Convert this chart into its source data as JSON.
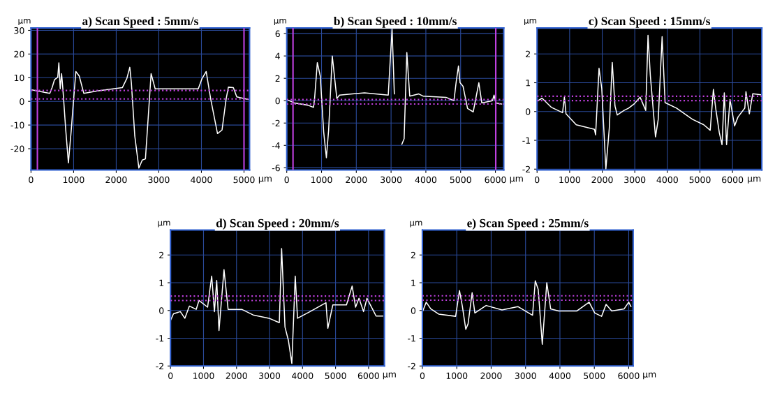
{
  "chart_data": [
    {
      "type": "line",
      "title": "a) Scan Speed : 5mm/s",
      "ylabel": "µm",
      "xlabel": "µm",
      "xlim": [
        0,
        5130
      ],
      "ylim": [
        -29,
        31
      ],
      "grid": true,
      "xticks": [
        0,
        1000,
        2000,
        3000,
        4000,
        5000
      ],
      "yticks": [
        30,
        20,
        10,
        0,
        -10,
        -20
      ],
      "ref_lines": [
        {
          "axis": "y",
          "value": 4.6,
          "color": "#c040e0",
          "line_style": "dotted"
        },
        {
          "axis": "y",
          "value": 1.0,
          "color": "#c040e0",
          "line_style": "dotted"
        },
        {
          "axis": "x",
          "value": 150,
          "color": "#c040e0",
          "line_style": "solid"
        },
        {
          "axis": "x",
          "value": 5000,
          "color": "#c040e0",
          "line_style": "solid"
        }
      ],
      "series": [
        {
          "color": "#ffffff",
          "x": [
            0,
            441,
            495,
            553,
            628,
            654,
            686,
            718,
            750,
            814,
            878,
            947,
            984,
            1053,
            1133,
            1239,
            1559,
            2144,
            2250,
            2319,
            2356,
            2436,
            2532,
            2612,
            2686,
            2755,
            2819,
            2915,
            3926,
            4016,
            4112,
            4218,
            4378,
            4484,
            4580,
            4633,
            4750,
            4830,
            5096
          ],
          "values": [
            4.9,
            3.4,
            5.8,
            9.2,
            10.2,
            16.3,
            5.3,
            11.7,
            4.9,
            -11.7,
            -26,
            -11.7,
            -2.9,
            12.6,
            10.7,
            3.4,
            4.4,
            5.8,
            9.7,
            14.4,
            7.8,
            -14.6,
            -28.2,
            -24.8,
            -24.3,
            -5.8,
            11.7,
            5.3,
            5.3,
            9.7,
            12.6,
            1.0,
            -13.6,
            -12.1,
            1.0,
            6.0,
            5.8,
            1.9,
            0.8
          ]
        }
      ]
    },
    {
      "type": "line",
      "title": "b) Scan Speed : 10mm/s",
      "ylabel": "µm",
      "xlabel": "µm",
      "xlim": [
        0,
        6240
      ],
      "ylim": [
        -6.2,
        6.5
      ],
      "grid": true,
      "xticks": [
        0,
        1000,
        2000,
        3000,
        4000,
        5000,
        6000
      ],
      "yticks": [
        6,
        4,
        2,
        0,
        -2,
        -4,
        -6
      ],
      "ref_lines": [
        {
          "axis": "y",
          "value": 0.1,
          "color": "#c040e0",
          "line_style": "dotted"
        },
        {
          "axis": "y",
          "value": -0.3,
          "color": "#c040e0",
          "line_style": "dotted"
        },
        {
          "axis": "x",
          "value": 180,
          "color": "#c040e0",
          "line_style": "solid"
        },
        {
          "axis": "x",
          "value": 6010,
          "color": "#c040e0",
          "line_style": "solid"
        }
      ],
      "series": [
        {
          "color": "#ffffff",
          "x": [
            0,
            215,
            606,
            769,
            801,
            879,
            964,
            1062,
            1140,
            1205,
            1309,
            1440,
            1518,
            2235,
            2919,
            2964,
            3029,
            3094,
            3147,
            3264,
            3309,
            3375,
            3453,
            3537,
            3798,
            3928,
            4580,
            4808,
            4873,
            4938,
            4984,
            5068,
            5199,
            5362,
            5524,
            5609,
            5915,
            5961,
            6013,
            6176
          ],
          "values": [
            0.1,
            -0.2,
            -0.4,
            -0.6,
            0.2,
            3.4,
            2.2,
            -2.8,
            -5.1,
            -2.6,
            4.0,
            0.2,
            0.5,
            0.7,
            0.5,
            3.0,
            6.4,
            0.6,
            null,
            null,
            -3.9,
            -3.4,
            4.3,
            0.4,
            0.6,
            0.4,
            0.3,
            0.0,
            1.7,
            3.1,
            1.6,
            1.3,
            -0.7,
            -1.0,
            1.6,
            -0.2,
            0.0,
            0.5,
            -0.2,
            -0.3
          ]
        }
      ]
    },
    {
      "type": "line",
      "title": "c) Scan Speed : 15mm/s",
      "ylabel": "µm",
      "xlabel": "µm",
      "xlim": [
        0,
        6900
      ],
      "ylim": [
        -2.03,
        2.9
      ],
      "grid": true,
      "xticks": [
        0,
        1000,
        2000,
        3000,
        4000,
        5000,
        6000
      ],
      "yticks": [
        2,
        1,
        0,
        -1,
        -2
      ],
      "ref_lines": [
        {
          "axis": "y",
          "value": 0.53,
          "color": "#c040e0",
          "line_style": "dotted"
        },
        {
          "axis": "y",
          "value": 0.38,
          "color": "#c040e0",
          "line_style": "dotted"
        }
      ],
      "series": [
        {
          "color": "#ffffff",
          "x": [
            28,
            154,
            434,
            783,
            839,
            888,
            1203,
            1483,
            1762,
            1797,
            1902,
            1986,
            2112,
            2217,
            2308,
            2392,
            2462,
            2671,
            2811,
            2986,
            3161,
            3336,
            3406,
            3476,
            3636,
            3720,
            3839,
            3930,
            4280,
            4769,
            5119,
            5315,
            5413,
            5483,
            5594,
            5678,
            5748,
            5818,
            5923,
            6063,
            6168,
            6378,
            6413,
            6517,
            6622,
            6867
          ],
          "values": [
            0.38,
            0.46,
            0.15,
            -0.04,
            0.5,
            -0.08,
            -0.46,
            -0.54,
            -0.62,
            -0.81,
            1.5,
            0.8,
            -2.0,
            -0.58,
            1.7,
            0.19,
            -0.12,
            0.04,
            0.12,
            0.27,
            0.5,
            0.04,
            2.65,
            1.27,
            -0.88,
            -0.27,
            2.6,
            0.31,
            0.12,
            -0.27,
            -0.46,
            -0.65,
            0.77,
            0.12,
            -0.73,
            -1.15,
            0.65,
            -1.15,
            0.42,
            -0.5,
            -0.19,
            0.12,
            0.69,
            -0.08,
            0.62,
            0.58
          ]
        }
      ]
    },
    {
      "type": "line",
      "title": "d) Scan Speed : 20mm/s",
      "ylabel": "µm",
      "xlabel": "µm",
      "xlim": [
        0,
        6480
      ],
      "ylim": [
        -2,
        2.9
      ],
      "grid": true,
      "xticks": [
        0,
        1000,
        2000,
        3000,
        4000,
        5000,
        6000
      ],
      "yticks": [
        2,
        1,
        0,
        -1,
        -2
      ],
      "ref_lines": [
        {
          "axis": "y",
          "value": 0.52,
          "color": "#c040e0",
          "line_style": "dotted"
        },
        {
          "axis": "y",
          "value": 0.36,
          "color": "#c040e0",
          "line_style": "dotted"
        }
      ],
      "series": [
        {
          "color": "#ffffff",
          "x": [
            0,
            90,
            297,
            434,
            572,
            779,
            862,
            1124,
            1248,
            1331,
            1400,
            1469,
            1621,
            1745,
            2159,
            2503,
            2986,
            3297,
            3366,
            3469,
            3572,
            3676,
            3779,
            3848,
            4228,
            4710,
            4766,
            4917,
            5331,
            5503,
            5607,
            5710,
            5848,
            5952,
            6124,
            6228,
            6434
          ],
          "values": [
            -0.36,
            -0.12,
            -0.04,
            -0.28,
            0.16,
            0.04,
            0.36,
            0.12,
            1.24,
            -0.04,
            1.08,
            -0.72,
            1.47,
            0.04,
            0.04,
            -0.16,
            -0.28,
            -0.44,
            2.23,
            -0.6,
            -1.08,
            -1.91,
            1.24,
            -0.28,
            -0.04,
            0.28,
            -0.64,
            0.2,
            0.2,
            0.88,
            0.12,
            0.44,
            -0.04,
            0.44,
            0.04,
            -0.2,
            -0.2
          ]
        }
      ]
    },
    {
      "type": "line",
      "title": "e) Scan Speed : 25mm/s",
      "ylabel": "µm",
      "xlabel": "µm",
      "xlim": [
        0,
        6130
      ],
      "ylim": [
        -2,
        2.9
      ],
      "grid": true,
      "xticks": [
        0,
        1000,
        2000,
        3000,
        4000,
        5000,
        6000
      ],
      "yticks": [
        2,
        1,
        0,
        -1,
        -2
      ],
      "ref_lines": [
        {
          "axis": "y",
          "value": 0.53,
          "color": "#c040e0",
          "line_style": "dotted"
        },
        {
          "axis": "y",
          "value": 0.37,
          "color": "#c040e0",
          "line_style": "dotted"
        }
      ],
      "series": [
        {
          "color": "#ffffff",
          "x": [
            13,
            112,
            243,
            474,
            967,
            1079,
            1164,
            1263,
            1329,
            1447,
            1526,
            1855,
            2316,
            2776,
            3204,
            3283,
            3368,
            3487,
            3618,
            3730,
            3961,
            4487,
            4849,
            5013,
            5211,
            5342,
            5507,
            5868,
            6000,
            6066
          ],
          "values": [
            -0.02,
            0.3,
            0.06,
            -0.13,
            -0.21,
            0.72,
            0.14,
            -0.68,
            -0.48,
            0.64,
            -0.09,
            0.18,
            0.02,
            0.14,
            -0.17,
            1.07,
            0.76,
            -1.22,
            1.0,
            0.06,
            -0.02,
            -0.02,
            0.3,
            -0.09,
            -0.21,
            0.22,
            -0.02,
            0.06,
            0.3,
            0.14
          ]
        }
      ]
    }
  ]
}
